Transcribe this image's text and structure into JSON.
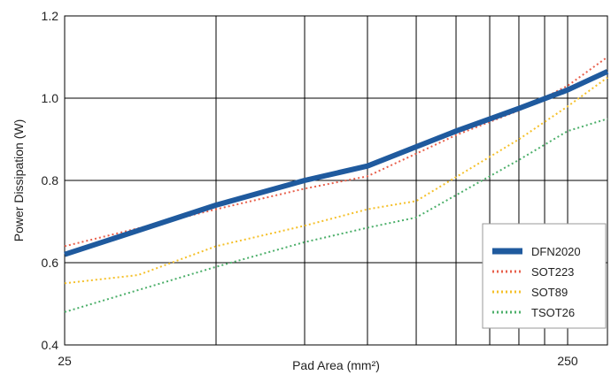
{
  "chart_data": {
    "type": "line",
    "xlabel": "Pad Area (mm²)",
    "ylabel": "Power Dissipation (W)",
    "x_scale": "log",
    "xlim": [
      25,
      300
    ],
    "ylim": [
      0.4,
      1.2
    ],
    "x_tick_labels": [
      {
        "value": 25,
        "label": "25"
      },
      {
        "value": 250,
        "label": "250"
      }
    ],
    "x_grid": [
      25,
      50,
      75,
      100,
      125,
      150,
      175,
      200,
      225,
      250,
      300
    ],
    "y_ticks": [
      {
        "value": 0.4,
        "label": "0.4"
      },
      {
        "value": 0.6,
        "label": "0.6"
      },
      {
        "value": 0.8,
        "label": "0.8"
      },
      {
        "value": 1.0,
        "label": "1.0"
      },
      {
        "value": 1.2,
        "label": "1.2"
      }
    ],
    "grid": true,
    "legend_position": "bottom-right",
    "series": [
      {
        "name": "DFN2020",
        "color": "#1f5a9e",
        "style": "solid",
        "points": [
          [
            25,
            0.62
          ],
          [
            50,
            0.74
          ],
          [
            75,
            0.8
          ],
          [
            100,
            0.835
          ],
          [
            150,
            0.92
          ],
          [
            200,
            0.975
          ],
          [
            250,
            1.02
          ],
          [
            300,
            1.065
          ]
        ]
      },
      {
        "name": "SOT223",
        "color": "#e8604c",
        "style": "dotted",
        "points": [
          [
            25,
            0.64
          ],
          [
            50,
            0.73
          ],
          [
            75,
            0.78
          ],
          [
            100,
            0.81
          ],
          [
            150,
            0.91
          ],
          [
            200,
            0.97
          ],
          [
            250,
            1.03
          ],
          [
            300,
            1.1
          ]
        ]
      },
      {
        "name": "SOT89",
        "color": "#f5c02a",
        "style": "dotted",
        "points": [
          [
            25,
            0.55
          ],
          [
            35,
            0.57
          ],
          [
            50,
            0.64
          ],
          [
            75,
            0.69
          ],
          [
            100,
            0.73
          ],
          [
            125,
            0.75
          ],
          [
            200,
            0.9
          ],
          [
            250,
            0.98
          ],
          [
            300,
            1.05
          ]
        ]
      },
      {
        "name": "TSOT26",
        "color": "#4caf6a",
        "style": "dotted",
        "points": [
          [
            25,
            0.48
          ],
          [
            50,
            0.59
          ],
          [
            75,
            0.65
          ],
          [
            100,
            0.685
          ],
          [
            125,
            0.71
          ],
          [
            200,
            0.85
          ],
          [
            250,
            0.92
          ],
          [
            300,
            0.95
          ]
        ]
      }
    ]
  }
}
